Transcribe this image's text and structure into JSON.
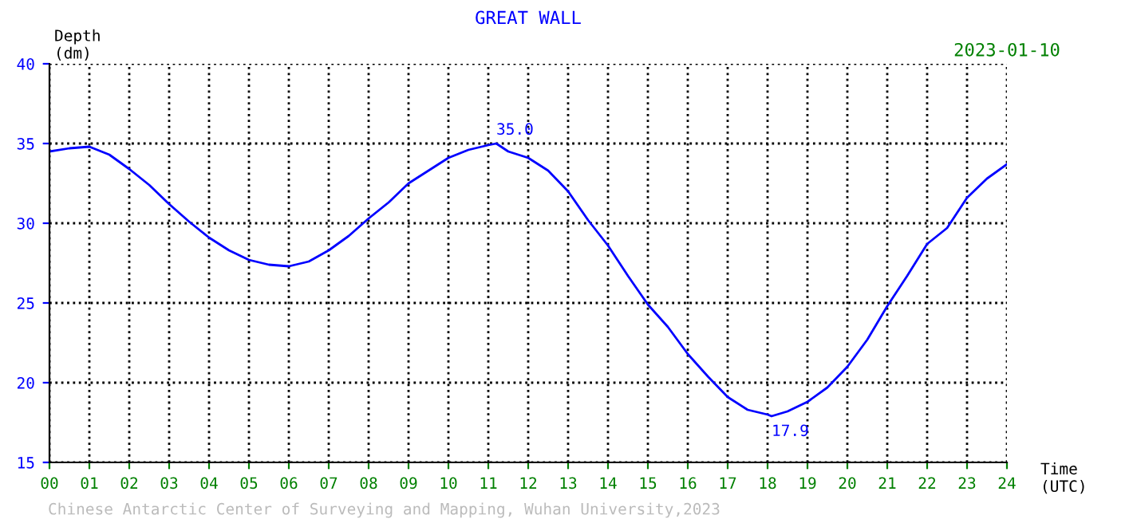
{
  "chart_data": {
    "type": "line",
    "title": "GREAT WALL",
    "xlabel": "Time\n(UTC)",
    "ylabel": "Depth\n(dm)",
    "x": [
      0,
      0.5,
      1,
      1.5,
      2,
      2.5,
      3,
      3.5,
      4,
      4.5,
      5,
      5.5,
      6,
      6.5,
      7,
      7.5,
      8,
      8.5,
      9,
      9.5,
      10,
      10.5,
      11,
      11.2,
      11.5,
      12,
      12.5,
      13,
      13.5,
      14,
      14.5,
      15,
      15.5,
      16,
      16.5,
      17,
      17.5,
      18,
      18.1,
      18.5,
      19,
      19.5,
      20,
      20.5,
      21,
      21.5,
      22,
      22.5,
      23,
      23.5,
      24
    ],
    "series": [
      {
        "color": "#0000ff",
        "values": [
          34.5,
          34.7,
          34.8,
          34.3,
          33.4,
          32.4,
          31.2,
          30.1,
          29.1,
          28.3,
          27.7,
          27.4,
          27.3,
          27.6,
          28.3,
          29.2,
          30.3,
          31.3,
          32.5,
          33.3,
          34.1,
          34.6,
          34.9,
          35.0,
          34.5,
          34.1,
          33.3,
          32.0,
          30.2,
          28.6,
          26.7,
          24.9,
          23.5,
          21.8,
          20.4,
          19.1,
          18.3,
          18.0,
          17.9,
          18.2,
          18.8,
          19.7,
          21.0,
          22.7,
          24.8,
          26.7,
          28.7,
          29.7,
          31.6,
          32.8,
          33.7
        ]
      }
    ],
    "xlim": [
      0,
      24
    ],
    "ylim": [
      15,
      40
    ],
    "xticks": [
      {
        "value": 0,
        "label": "00"
      },
      {
        "value": 1,
        "label": "01"
      },
      {
        "value": 2,
        "label": "02"
      },
      {
        "value": 3,
        "label": "03"
      },
      {
        "value": 4,
        "label": "04"
      },
      {
        "value": 5,
        "label": "05"
      },
      {
        "value": 6,
        "label": "06"
      },
      {
        "value": 7,
        "label": "07"
      },
      {
        "value": 8,
        "label": "08"
      },
      {
        "value": 9,
        "label": "09"
      },
      10,
      11,
      12,
      13,
      14,
      15,
      16,
      17,
      18,
      19,
      20,
      21,
      22,
      23,
      24
    ],
    "yticks": [
      15,
      20,
      25,
      30,
      35,
      40
    ],
    "grid": true,
    "line_style": "solid",
    "annotations": [
      {
        "text": "35.0",
        "x": 11.2,
        "y": 35.0
      },
      {
        "text": "17.9",
        "x": 18.1,
        "y": 17.9
      },
      "2023-01-10",
      "Chinese Antarctic Center of Surveying and Mapping, Wuhan University,2023"
    ]
  }
}
